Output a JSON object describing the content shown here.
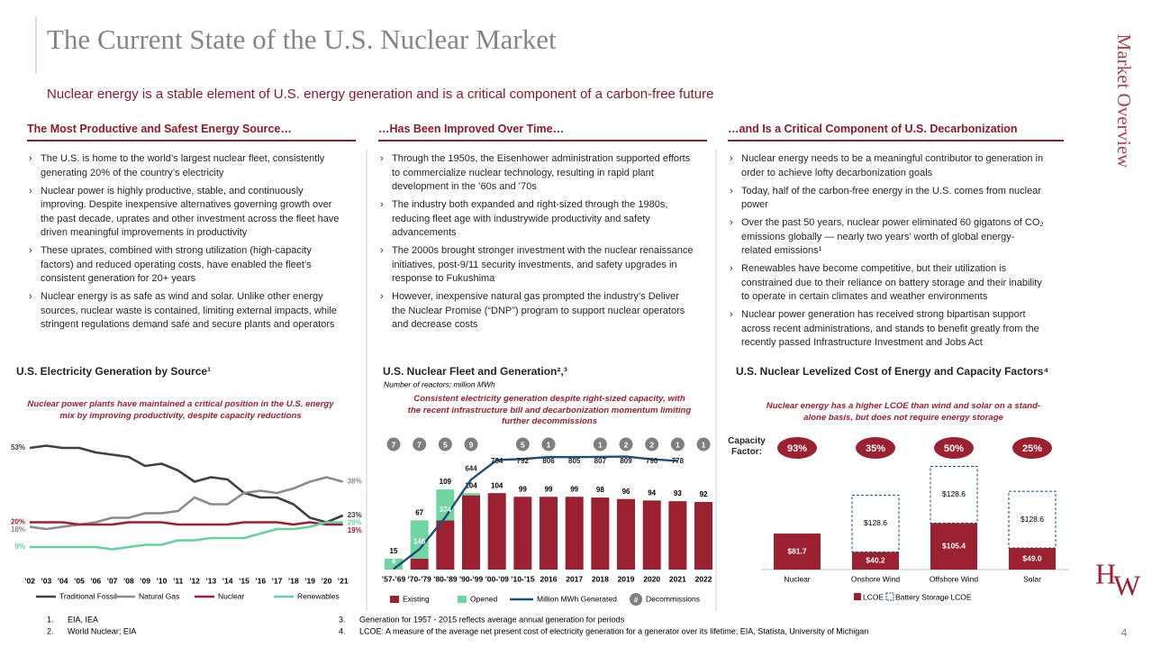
{
  "header": {
    "title": "The Current State of the U.S. Nuclear Market",
    "subtitle": "Nuclear energy is a stable element of U.S. energy generation and is a critical component of a carbon-free future",
    "side_label": "Market Overview",
    "page_number": "4",
    "logo": [
      "H",
      "W"
    ]
  },
  "columns": [
    {
      "heading": "The Most Productive and Safest Energy Source…",
      "bullets": [
        "The U.S. is home to the world’s largest nuclear fleet, consistently generating 20% of the country’s electricity",
        "Nuclear power is highly productive, stable, and continuously improving. Despite inexpensive alternatives governing growth over the past decade, uprates and other investment across the fleet have driven meaningful improvements in productivity",
        "These uprates, combined with strong utilization (high-capacity factors) and reduced operating costs, have enabled the fleet’s consistent generation for 20+ years",
        "Nuclear energy is as safe as wind and solar. Unlike other energy sources, nuclear waste is contained, limiting external impacts, while stringent regulations demand safe and secure plants and operators"
      ]
    },
    {
      "heading": "…Has Been Improved Over Time…",
      "bullets": [
        "Through the 1950s, the Eisenhower administration supported efforts to commercialize nuclear technology, resulting in rapid plant development in the ’60s and ’70s",
        "The industry both expanded and right-sized through the 1980s, reducing fleet age with industrywide productivity and safety advancements",
        "The 2000s brought stronger investment with the nuclear renaissance initiatives, post-9/11 security investments, and safety upgrades in response to Fukushima",
        "However, inexpensive natural gas prompted the industry’s Deliver the Nuclear Promise (“DNP”) program to support nuclear operators and decrease costs"
      ]
    },
    {
      "heading": "…and Is a Critical Component of U.S. Decarbonization",
      "bullets": [
        "Nuclear energy needs to be a meaningful contributor to generation in order to achieve lofty decarbonization goals",
        "Today, half of the carbon-free energy in the U.S. comes from nuclear power",
        "Over the past 50 years, nuclear power eliminated 60 gigatons of CO₂ emissions globally — nearly two years’ worth of global energy-related emissions¹",
        "Renewables have become competitive, but their utilization is constrained due to their reliance on battery storage and their inability to operate in certain climates and weather environments",
        "Nuclear power generation has received strong bipartisan support across recent administrations, and stands to benefit greatly from the recently passed Infrastructure Investment and Jobs Act"
      ]
    }
  ],
  "chart_data": [
    {
      "type": "line",
      "title": "U.S. Electricity Generation by Source¹",
      "subtitle": "Nuclear power plants have maintained a critical position in the U.S. energy mix by improving productivity, despite capacity reductions",
      "categories": [
        "’02",
        "’03",
        "’04",
        "’05",
        "’06",
        "’07",
        "’08",
        "’09",
        "’10",
        "’11",
        "’12",
        "’13",
        "’14",
        "’15",
        "’16",
        "’17",
        "’18",
        "’19",
        "’20",
        "’21"
      ],
      "ylim": [
        0,
        60
      ],
      "series": [
        {
          "name": "Traditional Fossil",
          "color": "#404040",
          "values": [
            53,
            54,
            53,
            53,
            51,
            50,
            49,
            45,
            46,
            43,
            38,
            40,
            39,
            33,
            31,
            31,
            28,
            22,
            20,
            23
          ],
          "value_labels": [
            "53%",
            null,
            null,
            null,
            null,
            null,
            null,
            null,
            null,
            null,
            null,
            null,
            null,
            null,
            null,
            null,
            null,
            null,
            null,
            "23%"
          ]
        },
        {
          "name": "Natural Gas",
          "color": "#8c8c8c",
          "values": [
            18,
            17,
            18,
            19,
            20,
            22,
            22,
            24,
            24,
            25,
            31,
            28,
            28,
            33,
            34,
            33,
            35,
            38,
            40,
            38
          ],
          "value_labels": [
            "18%",
            null,
            null,
            null,
            null,
            null,
            null,
            null,
            null,
            null,
            null,
            null,
            null,
            null,
            null,
            null,
            null,
            null,
            null,
            "38%"
          ]
        },
        {
          "name": "Nuclear",
          "color": "#9b2030",
          "values": [
            20,
            20,
            20,
            19,
            19,
            19,
            20,
            20,
            20,
            19,
            19,
            19,
            19,
            20,
            20,
            20,
            19,
            20,
            19,
            19
          ],
          "value_labels": [
            "20%",
            null,
            null,
            null,
            null,
            null,
            null,
            null,
            null,
            null,
            null,
            null,
            null,
            null,
            null,
            null,
            null,
            null,
            null,
            "19%"
          ]
        },
        {
          "name": "Renewables",
          "color": "#66d19e",
          "values": [
            9,
            9,
            9,
            9,
            9,
            8,
            9,
            10,
            10,
            12,
            12,
            13,
            13,
            13,
            15,
            17,
            17,
            18,
            20,
            20
          ],
          "value_labels": [
            "9%",
            null,
            null,
            null,
            null,
            null,
            null,
            null,
            null,
            null,
            null,
            null,
            null,
            null,
            null,
            null,
            null,
            null,
            null,
            "20%"
          ]
        }
      ]
    },
    {
      "type": "combo",
      "title": "U.S. Nuclear Fleet and Generation²,³",
      "note": "Number of reactors; million MWh",
      "annotation": "Consistent electricity generation despite right-sized capacity, with the recent infrastructure bill and decarbonization momentum limiting further decommissions",
      "categories": [
        "’57-’69",
        "’70-’79",
        "’80-’89",
        "’90-’99",
        "’00-’09",
        "’10-’15",
        "2016",
        "2017",
        "2018",
        "2019",
        "2020",
        "2021",
        "2022"
      ],
      "ylim": [
        0,
        190
      ],
      "y2lim": [
        0,
        1000
      ],
      "totals": [
        15,
        67,
        109,
        104,
        104,
        99,
        99,
        99,
        98,
        96,
        94,
        93,
        92
      ],
      "series": [
        {
          "name": "Existing",
          "color": "#9b2030",
          "values": [
            0,
            15,
            67,
            101,
            104,
            99,
            99,
            99,
            98,
            96,
            94,
            93,
            92
          ]
        },
        {
          "name": "Opened",
          "color": "#6fd6a2",
          "values": [
            15,
            52,
            42,
            3,
            0,
            0,
            0,
            0,
            0,
            0,
            0,
            0,
            0
          ]
        },
        {
          "name": "Million MWh Generated",
          "color": "#1f4e79",
          "axis": "y2",
          "values": [
            4,
            146,
            374,
            644,
            784,
            792,
            806,
            805,
            807,
            809,
            790,
            778,
            null
          ]
        },
        {
          "name": "Decommissions",
          "color": "#7f7f7f",
          "symbol": "#",
          "values": [
            7,
            7,
            5,
            9,
            null,
            5,
            1,
            null,
            1,
            2,
            2,
            1,
            1
          ]
        }
      ]
    },
    {
      "type": "bar",
      "title": "U.S. Nuclear Levelized Cost of Energy and Capacity Factors⁴",
      "annotation": "Nuclear energy has a higher LCOE than wind and solar on a stand-alone basis, but does not require energy storage",
      "capacity_factor_label": "Capacity Factor:",
      "capacity_factors": [
        93,
        35,
        50,
        25
      ],
      "capacity_factor_labels": [
        "93%",
        "35%",
        "50%",
        "25%"
      ],
      "categories": [
        "Nuclear",
        "Onshore Wind",
        "Offshore Wind",
        "Solar"
      ],
      "ylim": [
        0,
        235
      ],
      "series": [
        {
          "name": "LCOE",
          "color": "#9b2030",
          "values": [
            81.7,
            40.2,
            105.4,
            49.0
          ],
          "value_labels": [
            "$81.7",
            "$40.2",
            "$105.4",
            "$49.0"
          ]
        },
        {
          "name": "Battery Storage LCOE",
          "color": "#ffffff",
          "dashed": true,
          "values": [
            null,
            128.6,
            128.6,
            128.6
          ],
          "value_labels": [
            null,
            "$128.6",
            "$128.6",
            "$128.6"
          ]
        }
      ]
    }
  ],
  "footnotes": [
    {
      "number": "1.",
      "text": "EIA, IEA"
    },
    {
      "number": "2.",
      "text": "World Nuclear; EIA"
    },
    {
      "number": "3.",
      "text": "Generation for 1957 - 2015 reflects average annual generation for periods"
    },
    {
      "number": "4.",
      "text": "LCOE: A measure of the average net present cost of electricity generation for a generator over its lifetime; EIA, Statista, University of Michigan"
    }
  ]
}
